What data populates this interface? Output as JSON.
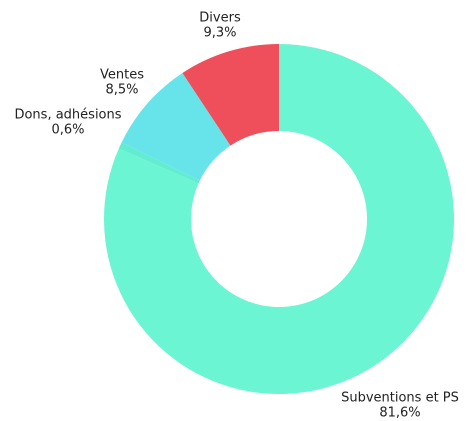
{
  "chart_data": {
    "type": "donut",
    "categories": [
      "Subventions et PS",
      "Dons, adhésions",
      "Ventes",
      "Divers"
    ],
    "values": [
      81.6,
      0.6,
      8.5,
      9.3
    ],
    "value_labels": [
      "81,6%",
      "0,6%",
      "8,5%",
      "9,3%"
    ],
    "colors": [
      "#6cf5d3",
      "#62ecd0",
      "#67e4e9",
      "#ef4f5b"
    ]
  }
}
